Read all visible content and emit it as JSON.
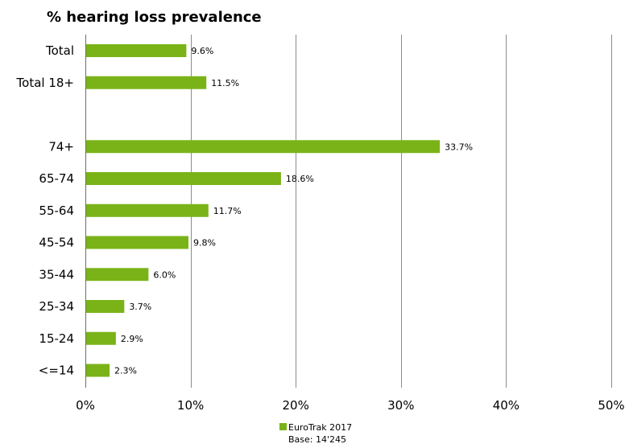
{
  "chart_data": {
    "type": "bar",
    "orientation": "horizontal",
    "title": "% hearing loss prevalence",
    "categories": [
      "Total",
      "Total 18+",
      "",
      "74+",
      "65-74",
      "55-64",
      "45-54",
      "35-44",
      "25-34",
      "15-24",
      "<=14"
    ],
    "series": [
      {
        "name": "EuroTrak 2017",
        "values": [
          9.6,
          11.5,
          null,
          33.7,
          18.6,
          11.7,
          9.8,
          6.0,
          3.7,
          2.9,
          2.3
        ],
        "labels": [
          "9.6%",
          "11.5%",
          "",
          "33.7%",
          "18.6%",
          "11.7%",
          "9.8%",
          "6.0%",
          "3.7%",
          "2.9%",
          "2.3%"
        ],
        "color": "#7ab317"
      }
    ],
    "xlim": [
      0,
      50
    ],
    "x_ticks": [
      0,
      10,
      20,
      30,
      40,
      50
    ],
    "x_tick_labels": [
      "0%",
      "10%",
      "20%",
      "30%",
      "40%",
      "50%"
    ],
    "grid": "vertical",
    "legend": {
      "placement": "bottom-center",
      "entry": "EuroTrak 2017",
      "note": "Base: 14'245"
    }
  }
}
